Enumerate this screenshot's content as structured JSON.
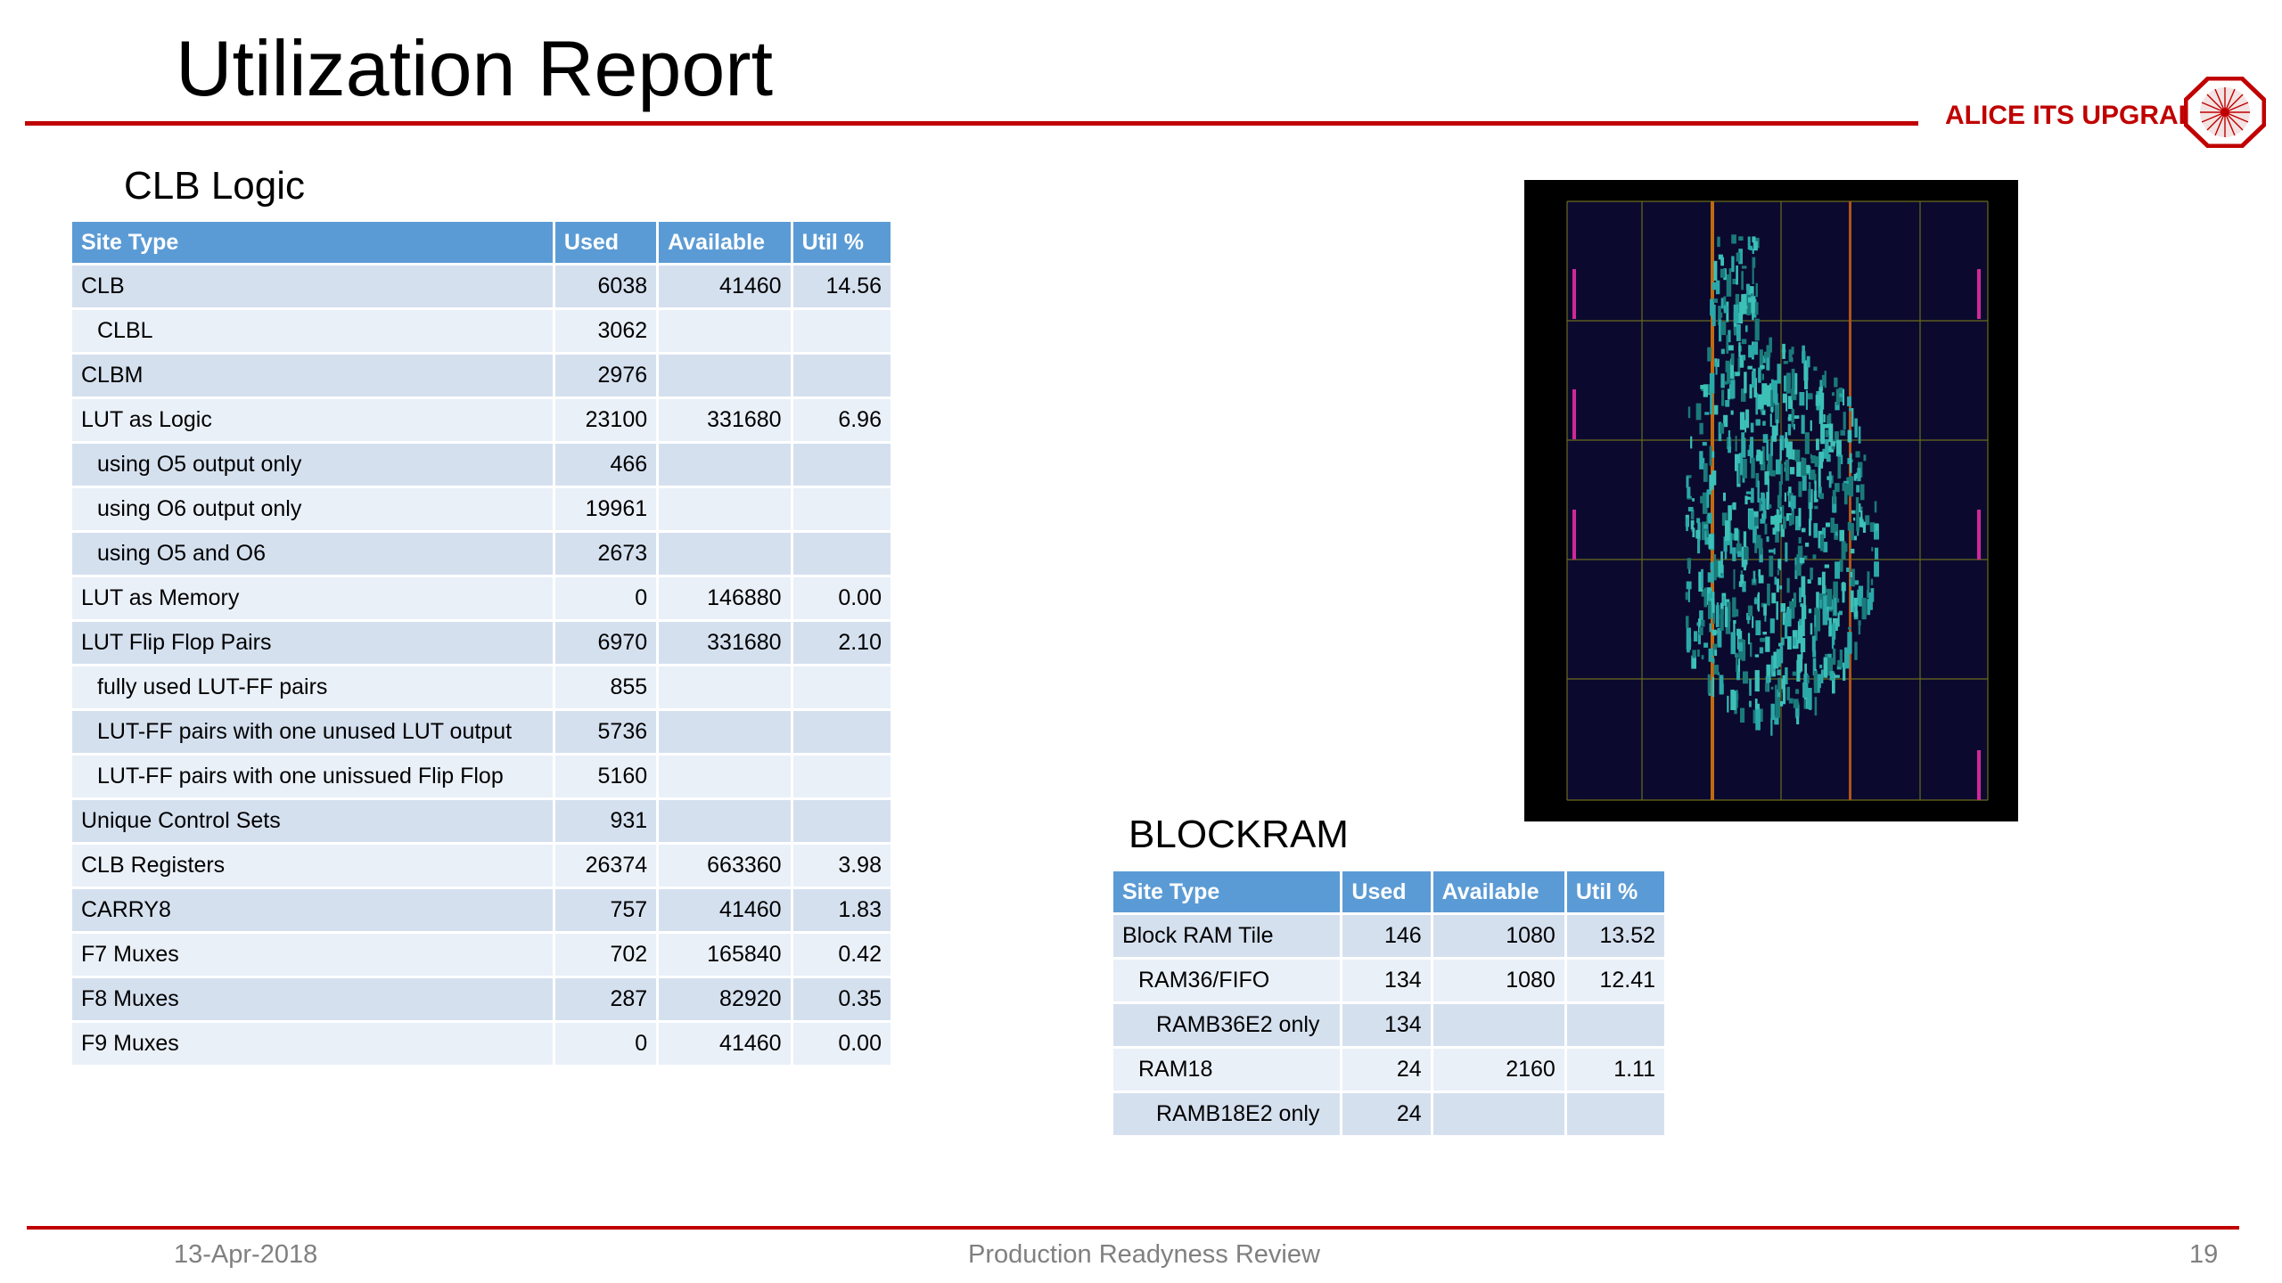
{
  "slide": {
    "title": "Utilization Report",
    "brand": "ALICE ITS UPGRADE",
    "accent_color": "#c00000",
    "header_color": "#5b9bd5",
    "footer": {
      "date": "13-Apr-2018",
      "center": "Production Readyness Review",
      "page": "19"
    }
  },
  "clb": {
    "heading": "CLB Logic",
    "columns": [
      "Site Type",
      "Used",
      "Available",
      "Util %"
    ],
    "rows": [
      {
        "site": "CLB",
        "used": "6038",
        "available": "41460",
        "util": "14.56",
        "indent": 0
      },
      {
        "site": "CLBL",
        "used": "3062",
        "available": "",
        "util": "",
        "indent": 1
      },
      {
        "site": "CLBM",
        "used": "2976",
        "available": "",
        "util": "",
        "indent": 0
      },
      {
        "site": "LUT as  Logic",
        "used": "23100",
        "available": "331680",
        "util": "6.96",
        "indent": 0
      },
      {
        "site": "using O5 output only",
        "used": "466",
        "available": "",
        "util": "",
        "indent": 1
      },
      {
        "site": "using O6 output only",
        "used": "19961",
        "available": "",
        "util": "",
        "indent": 1
      },
      {
        "site": "using O5 and O6",
        "used": "2673",
        "available": "",
        "util": "",
        "indent": 1
      },
      {
        "site": "LUT as Memory",
        "used": "0",
        "available": "146880",
        "util": "0.00",
        "indent": 0
      },
      {
        "site": "LUT Flip Flop Pairs",
        "used": "6970",
        "available": "331680",
        "util": "2.10",
        "indent": 0
      },
      {
        "site": "fully used LUT-FF pairs",
        "used": "855",
        "available": "",
        "util": "",
        "indent": 1
      },
      {
        "site": "LUT-FF pairs with one unused LUT output",
        "used": "5736",
        "available": "",
        "util": "",
        "indent": 1
      },
      {
        "site": "LUT-FF pairs with one unissued Flip Flop",
        "used": "5160",
        "available": "",
        "util": "",
        "indent": 1
      },
      {
        "site": "Unique Control Sets",
        "used": "931",
        "available": "",
        "util": "",
        "indent": 0
      },
      {
        "site": "CLB Registers",
        "used": "26374",
        "available": "663360",
        "util": "3.98",
        "indent": 0
      },
      {
        "site": "CARRY8",
        "used": "757",
        "available": "41460",
        "util": "1.83",
        "indent": 0
      },
      {
        "site": "F7 Muxes",
        "used": "702",
        "available": "165840",
        "util": "0.42",
        "indent": 0
      },
      {
        "site": "F8 Muxes",
        "used": "287",
        "available": "82920",
        "util": "0.35",
        "indent": 0
      },
      {
        "site": "F9 Muxes",
        "used": "0",
        "available": "41460",
        "util": "0.00",
        "indent": 0
      }
    ]
  },
  "bram": {
    "heading": "BLOCKRAM",
    "columns": [
      "Site Type",
      "Used",
      "Available",
      "Util %"
    ],
    "rows": [
      {
        "site": "Block RAM Tile",
        "used": "146",
        "available": "1080",
        "util": "13.52",
        "indent": 0
      },
      {
        "site": "RAM36/FIFO",
        "used": "134",
        "available": "1080",
        "util": "12.41",
        "indent": 1
      },
      {
        "site": "RAMB36E2 only",
        "used": "134",
        "available": "",
        "util": "",
        "indent": 2
      },
      {
        "site": "RAM18",
        "used": "24",
        "available": "2160",
        "util": "1.11",
        "indent": 1
      },
      {
        "site": "RAMB18E2 only",
        "used": "24",
        "available": "",
        "util": "",
        "indent": 2
      }
    ]
  },
  "floorplan": {
    "image": "fpga-device-floorplan",
    "cell_colors": [
      "#1a7a7a",
      "#2ba8a8",
      "#3cc0b8"
    ]
  }
}
